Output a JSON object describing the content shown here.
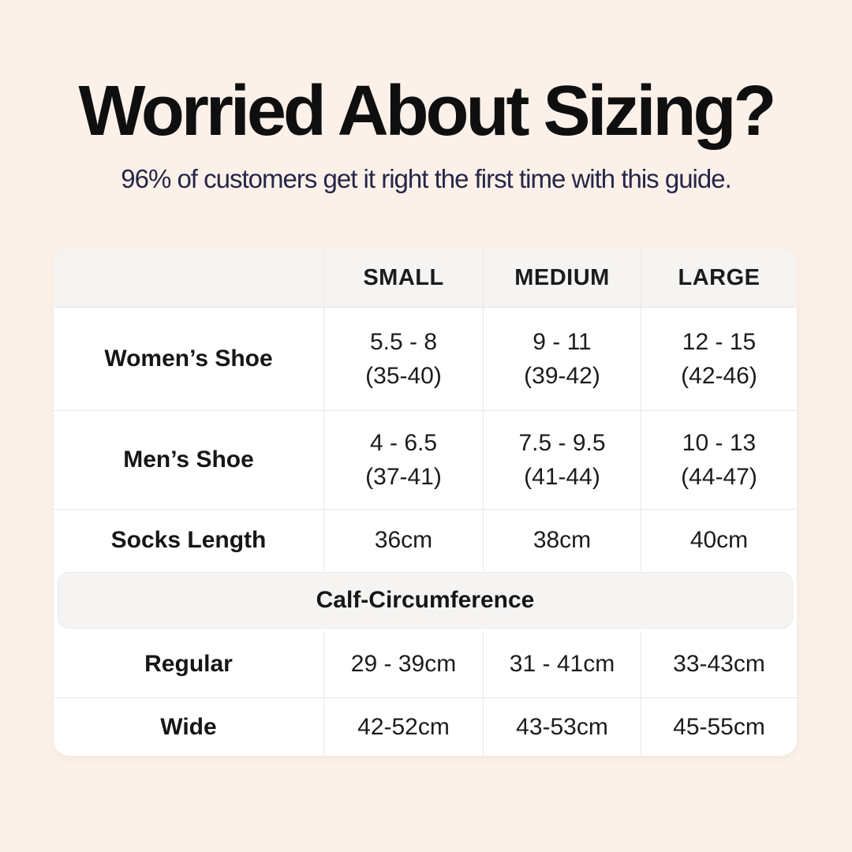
{
  "page": {
    "title": "Worried About Sizing?",
    "subtitle": "96% of customers get it right the first time with this guide.",
    "colors": {
      "background": "#FCF1E8",
      "card": "#FFFFFF",
      "header_band_gray": "#F5F4F2",
      "divider": "#E9E8E5",
      "title_text": "#0F0F10",
      "subtitle_text": "#26264A",
      "body_text": "#1C1C1E"
    }
  },
  "table": {
    "columns": [
      "SMALL",
      "MEDIUM",
      "LARGE"
    ],
    "band_header": "Calf-Circumference",
    "rows": [
      {
        "label": "Women’s Shoe",
        "cells": [
          [
            "5.5 - 8",
            "(35-40)"
          ],
          [
            "9 - 11",
            "(39-42)"
          ],
          [
            "12 - 15",
            "(42-46)"
          ]
        ]
      },
      {
        "label": "Men’s Shoe",
        "cells": [
          [
            "4 - 6.5",
            "(37-41)"
          ],
          [
            "7.5 - 9.5",
            "(41-44)"
          ],
          [
            "10 - 13",
            "(44-47)"
          ]
        ]
      },
      {
        "label": "Socks Length",
        "cells": [
          [
            "36cm"
          ],
          [
            "38cm"
          ],
          [
            "40cm"
          ]
        ]
      },
      {
        "label": "Regular",
        "cells": [
          [
            "29 - 39cm"
          ],
          [
            "31 - 41cm"
          ],
          [
            "33-43cm"
          ]
        ]
      },
      {
        "label": "Wide",
        "cells": [
          [
            "42-52cm"
          ],
          [
            "43-53cm"
          ],
          [
            "45-55cm"
          ]
        ]
      }
    ]
  }
}
